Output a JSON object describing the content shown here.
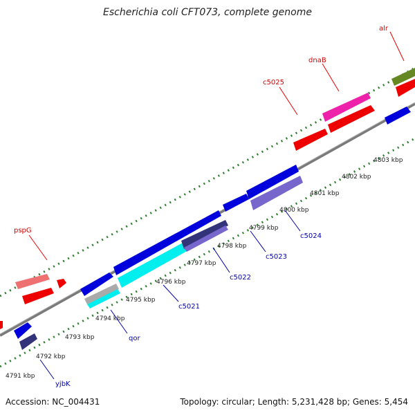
{
  "title": "Escherichia coli CFT073, complete genome",
  "footer": {
    "accession": "Accession: NC_004431",
    "summary": "Topology: circular; Length: 5,231,428 bp; Genes: 5,454"
  },
  "colors": {
    "backbone": "#7a7a7a",
    "tick_dots": "#2f7d2f",
    "forward_label": "#cc0000",
    "reverse_label": "#0000aa"
  },
  "ticks": [
    {
      "label": "4791 kbp"
    },
    {
      "label": "4792 kbp"
    },
    {
      "label": "4793 kbp"
    },
    {
      "label": "4794 kbp"
    },
    {
      "label": "4795 kbp"
    },
    {
      "label": "4796 kbp"
    },
    {
      "label": "4797 kbp"
    },
    {
      "label": "4798 kbp"
    },
    {
      "label": "4799 kbp"
    },
    {
      "label": "4800 kbp"
    },
    {
      "label": "4801 kbp"
    },
    {
      "label": "4802 kbp"
    },
    {
      "label": "4803 kbp"
    }
  ],
  "forward_gene_labels": [
    "pspG",
    "c5025",
    "dnaB",
    "alr"
  ],
  "reverse_gene_labels": [
    "yjbK",
    "qor",
    "c5021",
    "c5022",
    "c5023",
    "c5024"
  ],
  "gene_colors": {
    "red": "#ee0000",
    "pink_red": "#ee7070",
    "magenta": "#ee22aa",
    "olive": "#668822",
    "blue": "#0000dd",
    "navy": "#33337a",
    "cyan": "#00eeee",
    "lavender": "#7766cc",
    "gray": "#aaaaaa"
  }
}
